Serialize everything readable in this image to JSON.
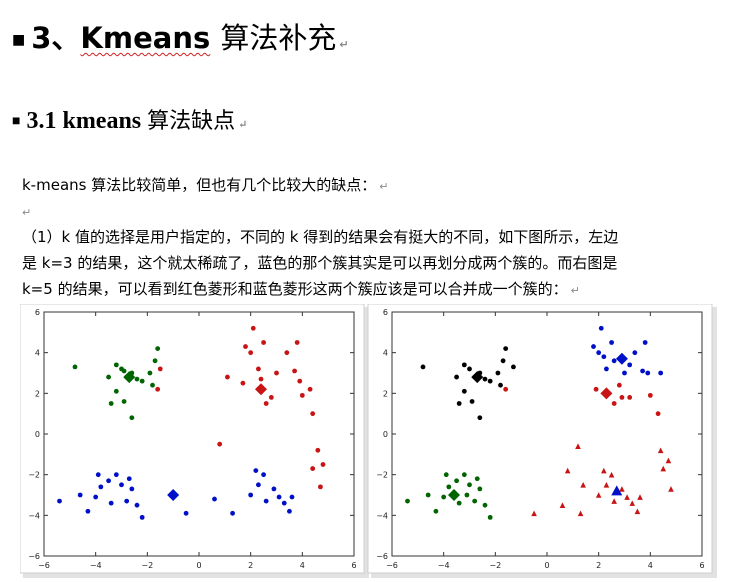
{
  "heading1": {
    "number": "3、",
    "latin": "Kmeans",
    "cn": "算法补充"
  },
  "heading2": {
    "number": "3.1 ",
    "latin": "kmeans",
    "cn": "算法缺点"
  },
  "intro": "k-means 算法比较简单，但也有几个比较大的缺点：",
  "para": {
    "line1": "（1）k 值的选择是用户指定的，不同的 k 得到的结果会有挺大的不同，如下图所示，左边",
    "line2": "是  k=3  的结果，这个就太稀疏了，蓝色的那个簇其实是可以再划分成两个簇的。而右图是",
    "line3": "k=5 的结果，可以看到红色菱形和蓝色菱形这两个簇应该是可以合并成一个簇的："
  },
  "para_mark": "↵",
  "chart_data": [
    {
      "type": "scatter",
      "xlim": [
        -6,
        6
      ],
      "ylim": [
        -6,
        6
      ],
      "xticks": [
        "−6",
        "−4",
        "−2",
        "0",
        "2",
        "4",
        "6"
      ],
      "yticks": [
        "6",
        "4",
        "2",
        "0",
        "−2",
        "−4",
        "−6"
      ],
      "series": [
        {
          "color": "#006400",
          "marker": "circle",
          "points": [
            [
              -4.8,
              3.3
            ],
            [
              -3.2,
              3.4
            ],
            [
              -3.0,
              3.2
            ],
            [
              -2.8,
              2.8
            ],
            [
              -2.6,
              3.0
            ],
            [
              -2.4,
              2.7
            ],
            [
              -2.2,
              2.6
            ],
            [
              -1.9,
              3.0
            ],
            [
              -1.7,
              3.6
            ],
            [
              -1.6,
              4.2
            ],
            [
              -1.8,
              2.4
            ],
            [
              -3.2,
              2.1
            ],
            [
              -3.4,
              1.5
            ],
            [
              -2.9,
              1.6
            ],
            [
              -2.6,
              0.8
            ],
            [
              -3.5,
              2.8
            ],
            [
              -2.9,
              3.1
            ]
          ]
        },
        {
          "color": "#c81414",
          "marker": "circle",
          "points": [
            [
              2.1,
              5.2
            ],
            [
              1.8,
              4.3
            ],
            [
              2.0,
              4.0
            ],
            [
              2.5,
              4.5
            ],
            [
              2.3,
              3.2
            ],
            [
              3.0,
              3.0
            ],
            [
              3.4,
              4.0
            ],
            [
              3.8,
              4.5
            ],
            [
              3.7,
              3.1
            ],
            [
              3.9,
              2.6
            ],
            [
              4.0,
              1.9
            ],
            [
              2.8,
              1.8
            ],
            [
              2.6,
              1.5
            ],
            [
              2.4,
              2.7
            ],
            [
              1.1,
              2.8
            ],
            [
              1.7,
              2.5
            ],
            [
              -1.5,
              3.2
            ],
            [
              -1.6,
              2.2
            ],
            [
              4.4,
              1.0
            ],
            [
              4.3,
              2.2
            ],
            [
              4.6,
              -0.8
            ],
            [
              4.8,
              -1.5
            ],
            [
              4.4,
              -1.7
            ],
            [
              4.7,
              -2.6
            ],
            [
              0.8,
              -0.5
            ]
          ]
        },
        {
          "color": "#0010c8",
          "marker": "circle",
          "points": [
            [
              -5.4,
              -3.3
            ],
            [
              -4.3,
              -3.8
            ],
            [
              -4.0,
              -3.1
            ],
            [
              -3.8,
              -2.6
            ],
            [
              -3.5,
              -2.3
            ],
            [
              -3.2,
              -2.0
            ],
            [
              -3.0,
              -2.5
            ],
            [
              -2.8,
              -3.3
            ],
            [
              -2.6,
              -2.7
            ],
            [
              -2.4,
              -3.5
            ],
            [
              -2.2,
              -4.1
            ],
            [
              -3.4,
              -3.4
            ],
            [
              -3.9,
              -2.0
            ],
            [
              -4.6,
              -3.0
            ],
            [
              -2.7,
              -2.2
            ],
            [
              -0.5,
              -3.9
            ],
            [
              0.6,
              -3.2
            ],
            [
              1.3,
              -3.9
            ],
            [
              2.0,
              -3.0
            ],
            [
              2.3,
              -2.5
            ],
            [
              2.5,
              -2.0
            ],
            [
              2.6,
              -3.3
            ],
            [
              2.9,
              -2.7
            ],
            [
              3.1,
              -3.1
            ],
            [
              3.3,
              -3.4
            ],
            [
              3.5,
              -3.8
            ],
            [
              3.6,
              -3.1
            ],
            [
              2.2,
              -1.8
            ]
          ]
        },
        {
          "color": "#006400",
          "marker": "diamond-large",
          "points": [
            [
              -2.7,
              2.8
            ]
          ]
        },
        {
          "color": "#c81414",
          "marker": "diamond-large",
          "points": [
            [
              2.4,
              2.2
            ]
          ]
        },
        {
          "color": "#0010c8",
          "marker": "diamond-large",
          "points": [
            [
              -1.0,
              -3.0
            ]
          ]
        }
      ]
    },
    {
      "type": "scatter",
      "xlim": [
        -6,
        6
      ],
      "ylim": [
        -6,
        6
      ],
      "xticks": [
        "−6",
        "−4",
        "−2",
        "0",
        "2",
        "4",
        "6"
      ],
      "yticks": [
        "6",
        "4",
        "2",
        "0",
        "−2",
        "−4",
        "−6"
      ],
      "series": [
        {
          "color": "#000000",
          "marker": "circle",
          "points": [
            [
              -4.8,
              3.3
            ],
            [
              -3.2,
              3.4
            ],
            [
              -3.0,
              3.2
            ],
            [
              -2.8,
              2.8
            ],
            [
              -2.6,
              3.0
            ],
            [
              -2.4,
              2.7
            ],
            [
              -2.2,
              2.6
            ],
            [
              -1.9,
              3.0
            ],
            [
              -1.7,
              3.6
            ],
            [
              -1.6,
              4.2
            ],
            [
              -1.8,
              2.4
            ],
            [
              -3.2,
              2.1
            ],
            [
              -3.4,
              1.5
            ],
            [
              -2.9,
              1.6
            ],
            [
              -2.6,
              0.8
            ],
            [
              -3.5,
              2.8
            ],
            [
              -1.3,
              3.3
            ]
          ]
        },
        {
          "color": "#0010c8",
          "marker": "circle",
          "points": [
            [
              2.1,
              5.2
            ],
            [
              1.8,
              4.3
            ],
            [
              2.0,
              4.0
            ],
            [
              2.5,
              4.5
            ],
            [
              2.3,
              3.2
            ],
            [
              3.0,
              3.0
            ],
            [
              3.4,
              4.0
            ],
            [
              3.8,
              4.5
            ],
            [
              3.7,
              3.1
            ],
            [
              3.9,
              3.0
            ],
            [
              2.6,
              3.6
            ],
            [
              2.2,
              3.8
            ],
            [
              3.2,
              3.4
            ],
            [
              4.4,
              3.0
            ]
          ]
        },
        {
          "color": "#c81414",
          "marker": "circle",
          "points": [
            [
              2.6,
              1.5
            ],
            [
              2.9,
              1.8
            ],
            [
              3.2,
              1.8
            ],
            [
              4.0,
              1.9
            ],
            [
              1.9,
              2.2
            ],
            [
              2.8,
              2.4
            ],
            [
              4.3,
              1.0
            ],
            [
              -1.6,
              2.2
            ]
          ]
        },
        {
          "color": "#006400",
          "marker": "circle",
          "points": [
            [
              -5.4,
              -3.3
            ],
            [
              -4.3,
              -3.8
            ],
            [
              -4.0,
              -3.1
            ],
            [
              -3.8,
              -2.6
            ],
            [
              -3.5,
              -2.3
            ],
            [
              -3.2,
              -2.0
            ],
            [
              -3.0,
              -2.5
            ],
            [
              -2.8,
              -3.3
            ],
            [
              -2.6,
              -2.7
            ],
            [
              -2.4,
              -3.5
            ],
            [
              -2.2,
              -4.1
            ],
            [
              -3.4,
              -3.4
            ],
            [
              -3.9,
              -2.0
            ],
            [
              -4.6,
              -3.0
            ],
            [
              -2.7,
              -2.2
            ],
            [
              -3.1,
              -3.0
            ]
          ]
        },
        {
          "color": "#c81414",
          "marker": "triangle",
          "points": [
            [
              1.2,
              -0.6
            ],
            [
              0.8,
              -1.8
            ],
            [
              1.4,
              -2.5
            ],
            [
              -0.5,
              -3.9
            ],
            [
              0.6,
              -3.5
            ],
            [
              1.3,
              -3.9
            ],
            [
              2.0,
              -3.0
            ],
            [
              2.3,
              -2.5
            ],
            [
              2.5,
              -2.0
            ],
            [
              2.6,
              -3.3
            ],
            [
              2.9,
              -2.7
            ],
            [
              3.1,
              -3.1
            ],
            [
              3.3,
              -3.4
            ],
            [
              3.5,
              -3.8
            ],
            [
              3.6,
              -3.1
            ],
            [
              4.4,
              -0.8
            ],
            [
              4.7,
              -1.3
            ],
            [
              4.5,
              -1.7
            ],
            [
              4.8,
              -2.7
            ],
            [
              2.2,
              -1.8
            ]
          ]
        },
        {
          "color": "#000000",
          "marker": "diamond-large",
          "points": [
            [
              -2.7,
              2.8
            ]
          ]
        },
        {
          "color": "#0010c8",
          "marker": "diamond-large",
          "points": [
            [
              2.9,
              3.7
            ]
          ]
        },
        {
          "color": "#c81414",
          "marker": "diamond-large",
          "points": [
            [
              2.3,
              2.0
            ]
          ]
        },
        {
          "color": "#006400",
          "marker": "diamond-large",
          "points": [
            [
              -3.6,
              -3.0
            ]
          ]
        },
        {
          "color": "#0010c8",
          "marker": "triangle-large",
          "points": [
            [
              2.7,
              -2.8
            ]
          ]
        }
      ]
    }
  ]
}
